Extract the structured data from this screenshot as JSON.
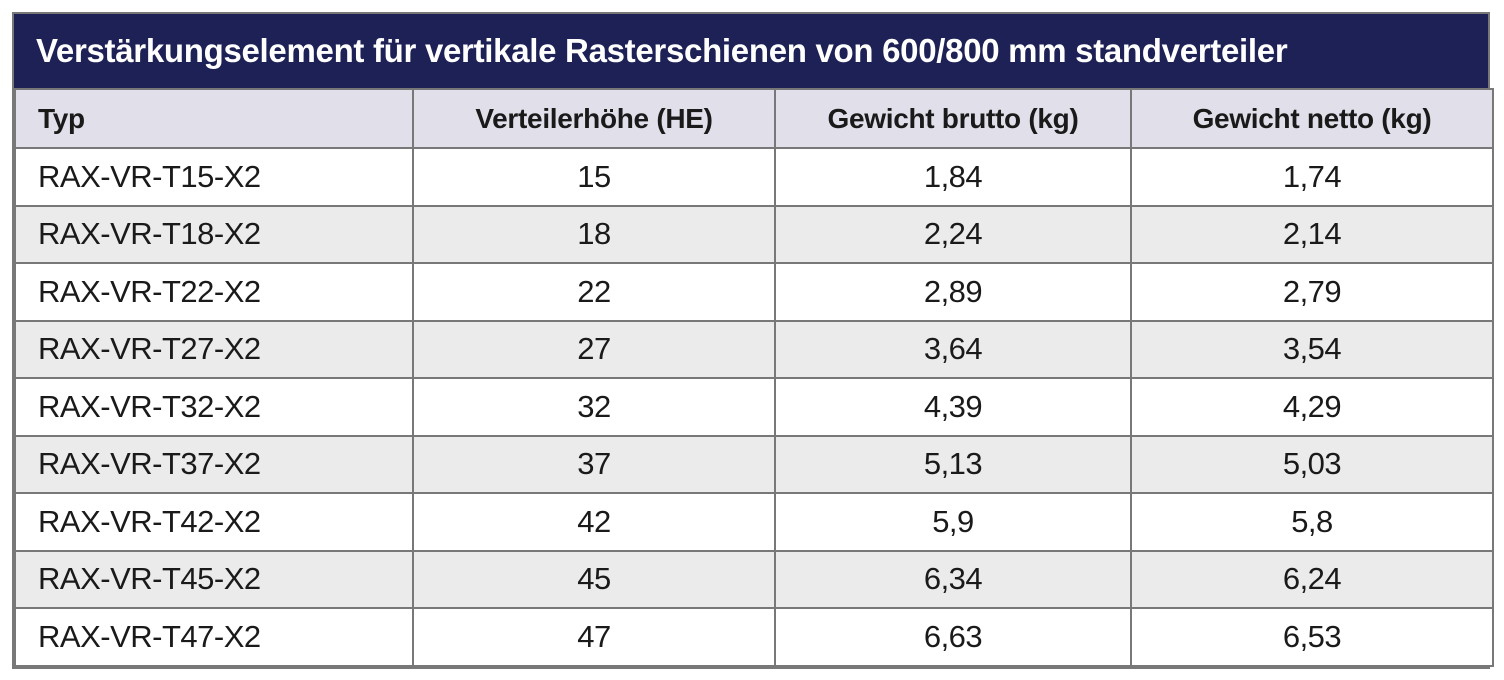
{
  "table": {
    "title": "Verstärkungselement für vertikale Rasterschienen von 600/800 mm standverteiler",
    "columns": [
      "Typ",
      "Verteilerhöhe (HE)",
      "Gewicht brutto (kg)",
      "Gewicht netto (kg)"
    ],
    "rows": [
      [
        "RAX-VR-T15-X2",
        "15",
        "1,84",
        "1,74"
      ],
      [
        "RAX-VR-T18-X2",
        "18",
        "2,24",
        "2,14"
      ],
      [
        "RAX-VR-T22-X2",
        "22",
        "2,89",
        "2,79"
      ],
      [
        "RAX-VR-T27-X2",
        "27",
        "3,64",
        "3,54"
      ],
      [
        "RAX-VR-T32-X2",
        "32",
        "4,39",
        "4,29"
      ],
      [
        "RAX-VR-T37-X2",
        "37",
        "5,13",
        "5,03"
      ],
      [
        "RAX-VR-T42-X2",
        "42",
        "5,9",
        "5,8"
      ],
      [
        "RAX-VR-T45-X2",
        "45",
        "6,34",
        "6,24"
      ],
      [
        "RAX-VR-T47-X2",
        "47",
        "6,63",
        "6,53"
      ]
    ],
    "cell_names": [
      "cell-typ",
      "cell-verteilerhoehe",
      "cell-gewicht-brutto",
      "cell-gewicht-netto"
    ]
  },
  "colors": {
    "title_bar_bg": "#1d2156",
    "title_text": "#ffffff",
    "header_row_bg": "#e1e0ea",
    "row_bg": "#ffffff",
    "row_alt_bg": "#ebebeb",
    "border": "#787878",
    "text": "#1a1a1a"
  }
}
